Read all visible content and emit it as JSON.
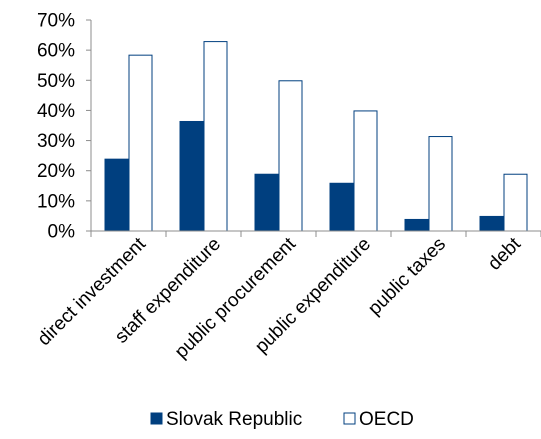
{
  "chart_data": {
    "type": "bar",
    "categories": [
      "direct investment",
      "staff expenditure",
      "public procurement",
      "public expenditure",
      "public taxes",
      "debt"
    ],
    "series": [
      {
        "name": "Slovak Republic",
        "values": [
          24,
          36.5,
          19,
          16,
          4,
          5
        ],
        "color": "#003f7f"
      },
      {
        "name": "OECD",
        "values": [
          58.5,
          63,
          50,
          40,
          31.5,
          19
        ],
        "color": "#ffffff",
        "stroke": "#003f7f"
      }
    ],
    "ylim": [
      0,
      70
    ],
    "yticks": [
      "0%",
      "10%",
      "20%",
      "30%",
      "40%",
      "50%",
      "60%",
      "70%"
    ],
    "ytick_values": [
      0,
      10,
      20,
      30,
      40,
      50,
      60,
      70
    ],
    "legend_position": "bottom",
    "grid": false
  }
}
